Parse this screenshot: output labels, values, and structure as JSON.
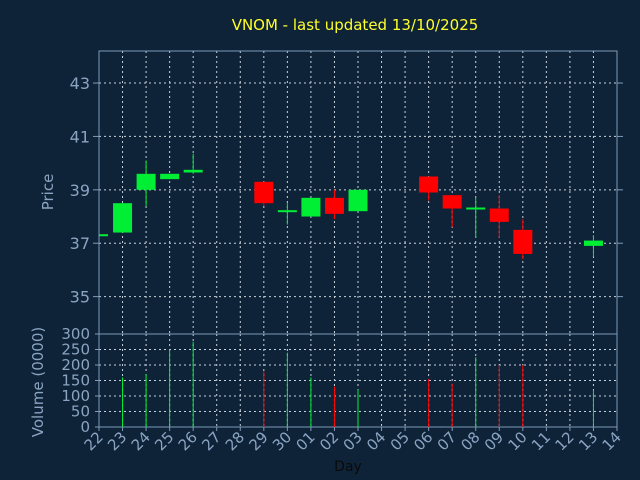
{
  "colors": {
    "background": "#0e2338",
    "panel_border": "#7f9bb8",
    "grid": "#c8d2dc",
    "title": "#ffff2a",
    "axis_text": "#8aa4c2",
    "xlabel_text": "#0a0a0a",
    "up": "#00ee33",
    "down": "#ff0000"
  },
  "chart_data": {
    "type": "candlestick",
    "title": "VNOM - last updated 13/10/2025",
    "price_axis": {
      "label": "Price",
      "ylim": [
        33.6,
        44.2
      ],
      "ticks": [
        35,
        37,
        39,
        41,
        43
      ]
    },
    "volume_axis": {
      "label": "Volume (0000)",
      "ylim": [
        0,
        300
      ],
      "ticks": [
        0,
        50,
        100,
        150,
        200,
        250,
        300
      ]
    },
    "xlabel": "Day",
    "x_ticks": [
      "22",
      "23",
      "24",
      "25",
      "26",
      "27",
      "28",
      "29",
      "30",
      "01",
      "02",
      "03",
      "04",
      "05",
      "06",
      "07",
      "08",
      "09",
      "10",
      "11",
      "12",
      "13",
      "14"
    ],
    "grid": true,
    "candles": [
      {
        "day": "22",
        "open": 37.3,
        "close": 37.3,
        "high": 37.3,
        "low": 37.3,
        "volume": 0
      },
      {
        "day": "23",
        "open": 37.4,
        "close": 38.5,
        "high": 38.5,
        "low": 37.4,
        "volume": 160
      },
      {
        "day": "24",
        "open": 39.0,
        "close": 39.6,
        "high": 40.1,
        "low": 38.4,
        "volume": 170
      },
      {
        "day": "25",
        "open": 39.4,
        "close": 39.6,
        "high": 39.6,
        "low": 39.4,
        "volume": 250
      },
      {
        "day": "26",
        "open": 39.65,
        "close": 39.75,
        "high": 40.35,
        "low": 39.6,
        "volume": 275
      },
      {
        "day": "29",
        "open": 39.3,
        "close": 38.5,
        "high": 39.3,
        "low": 38.4,
        "volume": 180
      },
      {
        "day": "30",
        "open": 38.2,
        "close": 38.2,
        "high": 38.5,
        "low": 37.7,
        "volume": 240
      },
      {
        "day": "01",
        "open": 38.0,
        "close": 38.7,
        "high": 38.7,
        "low": 38.0,
        "volume": 160
      },
      {
        "day": "02",
        "open": 38.7,
        "close": 38.1,
        "high": 39.0,
        "low": 37.9,
        "volume": 130
      },
      {
        "day": "03",
        "open": 38.2,
        "close": 39.0,
        "high": 39.0,
        "low": 38.2,
        "volume": 120
      },
      {
        "day": "06",
        "open": 39.5,
        "close": 38.9,
        "high": 39.5,
        "low": 38.6,
        "volume": 155
      },
      {
        "day": "07",
        "open": 38.8,
        "close": 38.3,
        "high": 38.8,
        "low": 37.6,
        "volume": 140
      },
      {
        "day": "08",
        "open": 38.25,
        "close": 38.3,
        "high": 38.7,
        "low": 37.2,
        "volume": 225
      },
      {
        "day": "09",
        "open": 38.3,
        "close": 37.8,
        "high": 38.8,
        "low": 37.2,
        "volume": 200
      },
      {
        "day": "10",
        "open": 37.5,
        "close": 36.6,
        "high": 37.9,
        "low": 36.4,
        "volume": 200
      },
      {
        "day": "13",
        "open": 36.9,
        "close": 37.1,
        "high": 37.3,
        "low": 36.5,
        "volume": 120
      }
    ]
  }
}
